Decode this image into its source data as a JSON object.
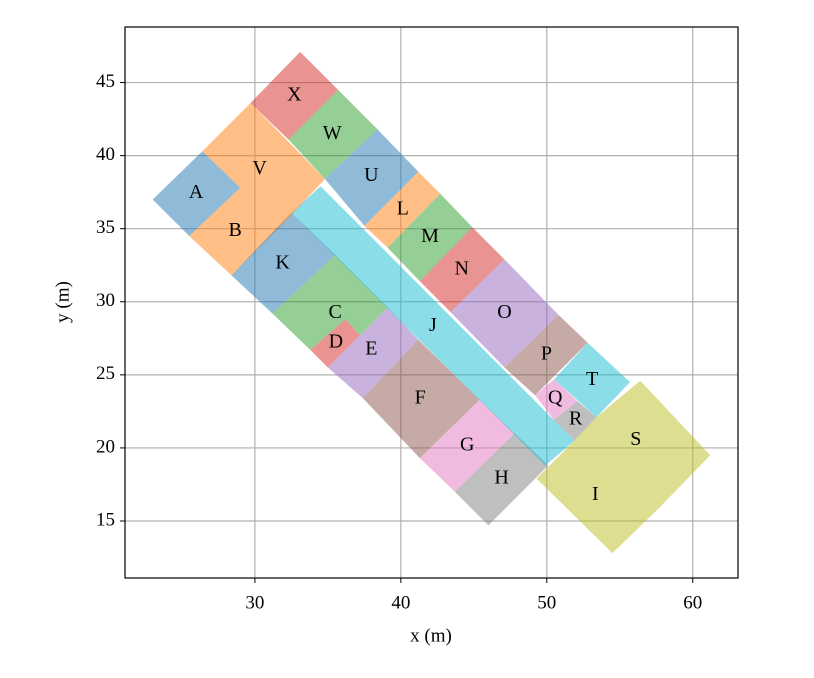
{
  "chart_data": {
    "type": "polygon",
    "xlabel": "x (m)",
    "ylabel": "y (m)",
    "xlim": [
      21.1,
      63.1
    ],
    "ylim": [
      11.1,
      48.8
    ],
    "xticks": [
      30,
      40,
      50,
      60
    ],
    "yticks": [
      15,
      20,
      25,
      30,
      35,
      40,
      45
    ],
    "grid": true,
    "series": [
      {
        "name": "A",
        "color": "#1f77b4",
        "x": [
          23.0,
          26.4,
          29.0,
          25.5
        ],
        "y": [
          37.0,
          40.3,
          37.8,
          34.5
        ]
      },
      {
        "name": "B",
        "color": "#ff7f0e",
        "x": [
          25.5,
          29.0,
          31.7,
          28.4
        ],
        "y": [
          34.5,
          37.8,
          35.1,
          31.8
        ]
      },
      {
        "name": "C",
        "color": "#2ca02c",
        "x": [
          31.2,
          35.5,
          39.1,
          37.2,
          36.2,
          33.8
        ],
        "y": [
          29.2,
          33.2,
          29.6,
          27.7,
          28.8,
          26.7
        ]
      },
      {
        "name": "D",
        "color": "#d62728",
        "x": [
          33.8,
          36.2,
          37.2,
          35.0
        ],
        "y": [
          26.7,
          28.8,
          27.7,
          25.5
        ]
      },
      {
        "name": "E",
        "color": "#9467bd",
        "x": [
          35.0,
          37.2,
          39.1,
          41.2,
          37.4
        ],
        "y": [
          25.5,
          27.7,
          29.6,
          27.4,
          23.4
        ]
      },
      {
        "name": "F",
        "color": "#8c564b",
        "x": [
          37.4,
          41.2,
          45.4,
          41.3
        ],
        "y": [
          23.4,
          27.4,
          23.3,
          19.3
        ]
      },
      {
        "name": "G",
        "color": "#e377c2",
        "x": [
          41.3,
          45.4,
          47.8,
          43.7
        ],
        "y": [
          19.3,
          23.3,
          21.0,
          17.0
        ]
      },
      {
        "name": "H",
        "color": "#7f7f7f",
        "x": [
          43.7,
          47.8,
          50.1,
          46.0
        ],
        "y": [
          17.0,
          21.0,
          18.8,
          14.7
        ]
      },
      {
        "name": "I",
        "color": "#bcbd22",
        "x": [
          49.3,
          51.9,
          57.6,
          54.5
        ],
        "y": [
          17.9,
          20.5,
          15.8,
          12.8
        ]
      },
      {
        "name": "J",
        "color": "#17becf",
        "x": [
          32.5,
          34.5,
          51.9,
          49.9
        ],
        "y": [
          36.1,
          37.9,
          20.5,
          18.8
        ]
      },
      {
        "name": "K",
        "color": "#1f77b4",
        "x": [
          28.4,
          32.5,
          35.5,
          31.2
        ],
        "y": [
          31.8,
          36.1,
          33.2,
          29.2
        ]
      },
      {
        "name": "L",
        "color": "#ff7f0e",
        "x": [
          37.5,
          41.2,
          42.7,
          39.1
        ],
        "y": [
          35.2,
          38.9,
          37.4,
          33.7
        ]
      },
      {
        "name": "M",
        "color": "#2ca02c",
        "x": [
          39.1,
          42.7,
          44.9,
          41.3
        ],
        "y": [
          33.7,
          37.4,
          35.1,
          31.4
        ]
      },
      {
        "name": "N",
        "color": "#d62728",
        "x": [
          41.3,
          44.9,
          47.1,
          43.4
        ],
        "y": [
          31.4,
          35.1,
          32.9,
          29.3
        ]
      },
      {
        "name": "O",
        "color": "#9467bd",
        "x": [
          43.4,
          47.1,
          50.8,
          47.1
        ],
        "y": [
          29.3,
          32.9,
          29.1,
          25.5
        ]
      },
      {
        "name": "P",
        "color": "#8c564b",
        "x": [
          47.1,
          50.8,
          52.8,
          49.2
        ],
        "y": [
          25.5,
          29.1,
          27.2,
          23.6
        ]
      },
      {
        "name": "Q",
        "color": "#e377c2",
        "x": [
          49.2,
          50.5,
          52.1,
          50.5
        ],
        "y": [
          23.6,
          24.7,
          23.2,
          21.9
        ]
      },
      {
        "name": "R",
        "color": "#7f7f7f",
        "x": [
          50.5,
          52.1,
          53.4,
          51.9
        ],
        "y": [
          21.9,
          23.2,
          22.1,
          20.5
        ]
      },
      {
        "name": "S",
        "color": "#bcbd22",
        "x": [
          51.9,
          53.4,
          56.4,
          61.2,
          57.6
        ],
        "y": [
          20.5,
          22.1,
          24.6,
          19.5,
          15.8
        ]
      },
      {
        "name": "T",
        "color": "#17becf",
        "x": [
          50.5,
          52.8,
          55.7,
          53.4
        ],
        "y": [
          24.7,
          27.2,
          24.5,
          22.1
        ]
      },
      {
        "name": "U",
        "color": "#1f77b4",
        "x": [
          34.8,
          38.4,
          41.2,
          37.5
        ],
        "y": [
          38.4,
          41.8,
          38.9,
          35.2
        ]
      },
      {
        "name": "V",
        "color": "#ff7f0e",
        "x": [
          26.4,
          29.7,
          34.8,
          31.7,
          29.0
        ],
        "y": [
          40.3,
          43.6,
          38.4,
          35.1,
          37.8
        ]
      },
      {
        "name": "W",
        "color": "#2ca02c",
        "x": [
          32.3,
          35.7,
          38.4,
          34.8
        ],
        "y": [
          41.1,
          44.5,
          41.8,
          38.4
        ]
      },
      {
        "name": "X",
        "color": "#d62728",
        "x": [
          29.7,
          33.1,
          35.7,
          32.3
        ],
        "y": [
          43.6,
          47.1,
          44.5,
          41.1
        ]
      }
    ]
  }
}
